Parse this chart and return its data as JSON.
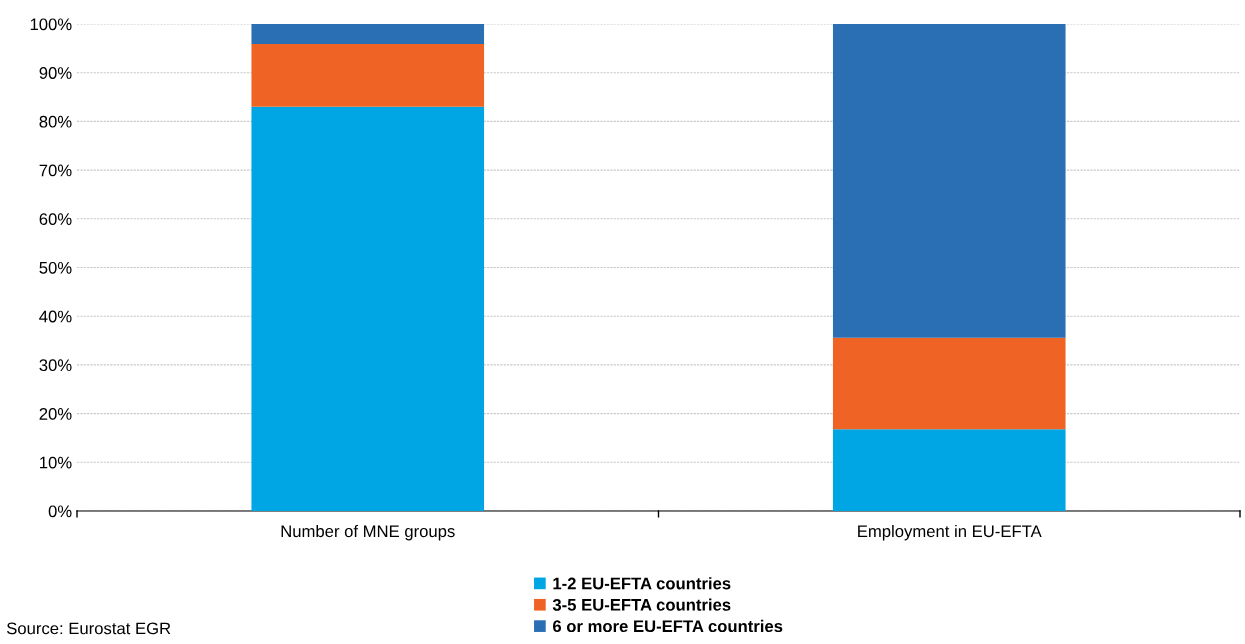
{
  "chart_data": {
    "type": "bar",
    "stacked": true,
    "categories": [
      "Number of MNE groups",
      "Employment in EU-EFTA"
    ],
    "series": [
      {
        "name": "1-2 EU-EFTA countries",
        "color": "#00a5e3",
        "values": [
          83.0,
          16.8
        ]
      },
      {
        "name": "3-5 EU-EFTA countries",
        "color": "#ef6424",
        "values": [
          12.9,
          18.8
        ]
      },
      {
        "name": "6 or more EU-EFTA countries",
        "color": "#2a6eb3",
        "values": [
          4.1,
          64.4
        ]
      }
    ],
    "ylim": [
      0,
      100
    ],
    "yticks": [
      {
        "value": 0,
        "label": "0%"
      },
      {
        "value": 10,
        "label": "10%"
      },
      {
        "value": 20,
        "label": "20%"
      },
      {
        "value": 30,
        "label": "30%"
      },
      {
        "value": 40,
        "label": "40%"
      },
      {
        "value": 50,
        "label": "50%"
      },
      {
        "value": 60,
        "label": "60%"
      },
      {
        "value": 70,
        "label": "70%"
      },
      {
        "value": 80,
        "label": "80%"
      },
      {
        "value": 90,
        "label": "90%"
      },
      {
        "value": 100,
        "label": "100%"
      }
    ],
    "grid": "y",
    "legend": "bottom",
    "annotations": [
      "Source: Eurostat EGR"
    ]
  }
}
